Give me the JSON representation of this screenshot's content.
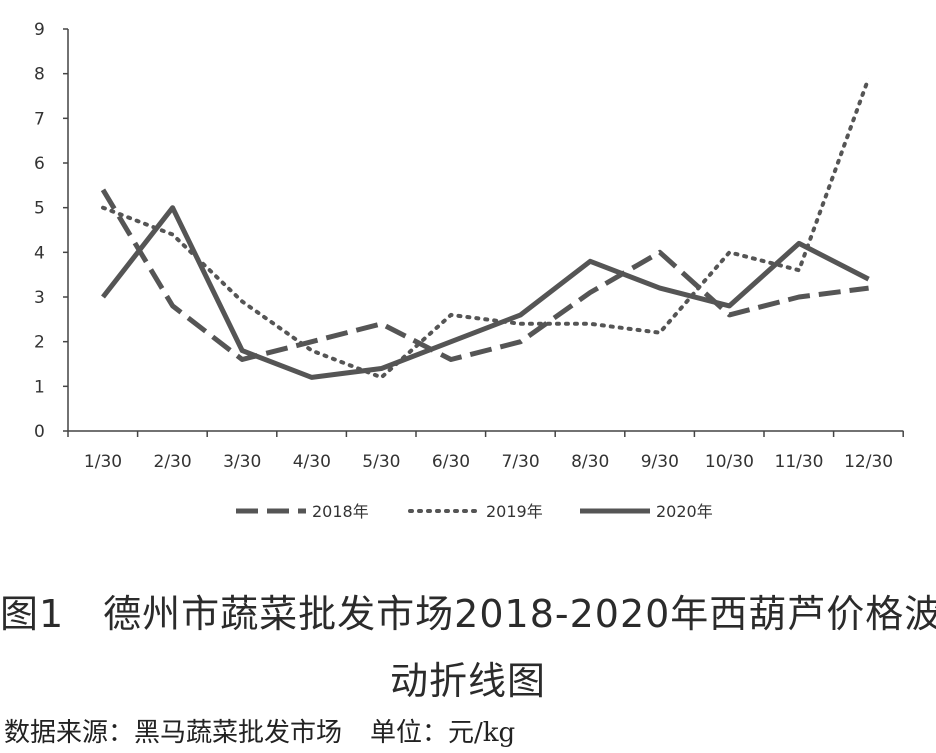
{
  "chart_data": {
    "type": "line",
    "categories": [
      "1/30",
      "2/30",
      "3/30",
      "4/30",
      "5/30",
      "6/30",
      "7/30",
      "8/30",
      "9/30",
      "10/30",
      "11/30",
      "12/30"
    ],
    "series": [
      {
        "name": "2018年",
        "style": "dashed",
        "values": [
          5.4,
          2.8,
          1.6,
          2.0,
          2.4,
          1.6,
          2.0,
          3.1,
          4.0,
          2.6,
          3.0,
          3.2
        ]
      },
      {
        "name": "2019年",
        "style": "dotted",
        "values": [
          5.0,
          4.4,
          2.9,
          1.8,
          1.2,
          2.6,
          2.4,
          2.4,
          2.2,
          4.0,
          3.6,
          7.9
        ]
      },
      {
        "name": "2020年",
        "style": "solid",
        "values": [
          3.0,
          5.0,
          1.8,
          1.2,
          1.4,
          2.0,
          2.6,
          3.8,
          3.2,
          2.8,
          4.2,
          3.4
        ]
      }
    ],
    "y_ticks": [
      "0",
      "1",
      "2",
      "3",
      "4",
      "5",
      "6",
      "7",
      "8",
      "9"
    ],
    "ylim": [
      0,
      9
    ],
    "grid": false,
    "legend_position": "bottom",
    "line_color": "#555555"
  },
  "caption": {
    "line1": "图1　德州市蔬菜批发市场2018-2020年西葫芦价格波",
    "line2": "动折线图"
  },
  "source_note": {
    "source": "数据来源：黑马蔬菜批发市场",
    "unit": "单位：元/kg"
  }
}
